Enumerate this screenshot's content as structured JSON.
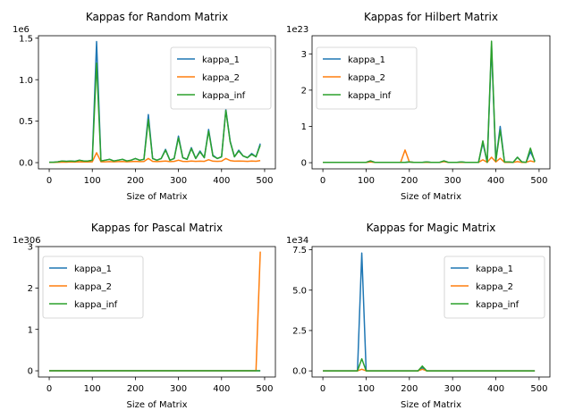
{
  "figure": {
    "background": "#ffffff"
  },
  "series_colors": {
    "kappa_1": "#1f77b4",
    "kappa_2": "#ff7f0e",
    "kappa_inf": "#2ca02c"
  },
  "chart_data": [
    {
      "type": "line",
      "title": "Kappas for Random Matrix",
      "xlabel": "Size of Matrix",
      "ylabel": "",
      "offset_text": "1e6",
      "xlim": [
        -25,
        525
      ],
      "ylim": [
        -0.075,
        1.53
      ],
      "xticks": [
        0,
        100,
        200,
        300,
        400,
        500
      ],
      "yticks": [
        0.0,
        0.5,
        1.0,
        1.5
      ],
      "ytick_labels": [
        "0.0",
        "0.5",
        "1.0",
        "1.5"
      ],
      "legend": {
        "position": "upper-right",
        "entries": [
          "kappa_1",
          "kappa_2",
          "kappa_inf"
        ]
      },
      "x": [
        0,
        10,
        20,
        30,
        40,
        50,
        60,
        70,
        80,
        90,
        100,
        110,
        120,
        130,
        140,
        150,
        160,
        170,
        180,
        190,
        200,
        210,
        220,
        230,
        240,
        250,
        260,
        270,
        280,
        290,
        300,
        310,
        320,
        330,
        340,
        350,
        360,
        370,
        380,
        390,
        400,
        410,
        420,
        430,
        440,
        450,
        460,
        470,
        480,
        490
      ],
      "series": [
        {
          "name": "kappa_1",
          "values": [
            0.005,
            0.005,
            0.01,
            0.02,
            0.015,
            0.02,
            0.015,
            0.03,
            0.02,
            0.02,
            0.03,
            1.46,
            0.02,
            0.03,
            0.04,
            0.02,
            0.03,
            0.04,
            0.02,
            0.03,
            0.05,
            0.03,
            0.04,
            0.58,
            0.05,
            0.03,
            0.05,
            0.16,
            0.03,
            0.05,
            0.32,
            0.06,
            0.04,
            0.18,
            0.05,
            0.14,
            0.06,
            0.4,
            0.09,
            0.05,
            0.07,
            0.64,
            0.26,
            0.07,
            0.15,
            0.08,
            0.06,
            0.11,
            0.07,
            0.23
          ]
        },
        {
          "name": "kappa_2",
          "values": [
            0.003,
            0.004,
            0.005,
            0.006,
            0.006,
            0.008,
            0.007,
            0.01,
            0.008,
            0.009,
            0.01,
            0.12,
            0.01,
            0.01,
            0.012,
            0.01,
            0.012,
            0.013,
            0.01,
            0.012,
            0.015,
            0.012,
            0.014,
            0.05,
            0.015,
            0.012,
            0.015,
            0.02,
            0.012,
            0.015,
            0.03,
            0.016,
            0.013,
            0.02,
            0.015,
            0.018,
            0.016,
            0.035,
            0.018,
            0.015,
            0.018,
            0.05,
            0.025,
            0.018,
            0.02,
            0.018,
            0.016,
            0.02,
            0.017,
            0.025
          ]
        },
        {
          "name": "kappa_inf",
          "values": [
            0.005,
            0.005,
            0.01,
            0.02,
            0.015,
            0.02,
            0.015,
            0.03,
            0.02,
            0.02,
            0.03,
            1.2,
            0.02,
            0.03,
            0.04,
            0.02,
            0.03,
            0.04,
            0.02,
            0.03,
            0.05,
            0.03,
            0.04,
            0.52,
            0.05,
            0.03,
            0.05,
            0.15,
            0.03,
            0.05,
            0.3,
            0.06,
            0.04,
            0.17,
            0.05,
            0.13,
            0.06,
            0.38,
            0.08,
            0.05,
            0.07,
            0.63,
            0.25,
            0.07,
            0.14,
            0.08,
            0.06,
            0.1,
            0.07,
            0.21
          ]
        }
      ]
    },
    {
      "type": "line",
      "title": "Kappas for Hilbert Matrix",
      "xlabel": "Size of Matrix",
      "ylabel": "",
      "offset_text": "1e23",
      "xlim": [
        -25,
        525
      ],
      "ylim": [
        -0.17,
        3.5
      ],
      "xticks": [
        0,
        100,
        200,
        300,
        400,
        500
      ],
      "yticks": [
        0,
        1,
        2,
        3
      ],
      "ytick_labels": [
        "0",
        "1",
        "2",
        "3"
      ],
      "legend": {
        "position": "upper-left",
        "entries": [
          "kappa_1",
          "kappa_2",
          "kappa_inf"
        ]
      },
      "x": [
        0,
        10,
        20,
        30,
        40,
        50,
        60,
        70,
        80,
        90,
        100,
        110,
        120,
        130,
        140,
        150,
        160,
        170,
        180,
        190,
        200,
        210,
        220,
        230,
        240,
        250,
        260,
        270,
        280,
        290,
        300,
        310,
        320,
        330,
        340,
        350,
        360,
        370,
        380,
        390,
        400,
        410,
        420,
        430,
        440,
        450,
        460,
        470,
        480,
        490
      ],
      "series": [
        {
          "name": "kappa_1",
          "values": [
            0.01,
            0.01,
            0.01,
            0.01,
            0.01,
            0.01,
            0.01,
            0.01,
            0.01,
            0.01,
            0.01,
            0.05,
            0.01,
            0.01,
            0.01,
            0.01,
            0.01,
            0.01,
            0.01,
            0.01,
            0.02,
            0.01,
            0.01,
            0.01,
            0.02,
            0.01,
            0.01,
            0.01,
            0.05,
            0.01,
            0.01,
            0.01,
            0.02,
            0.01,
            0.01,
            0.01,
            0.01,
            0.55,
            0.01,
            3.2,
            0.05,
            1.0,
            0.02,
            0.02,
            0.01,
            0.15,
            0.02,
            0.01,
            0.3,
            0.05
          ]
        },
        {
          "name": "kappa_2",
          "values": [
            0.01,
            0.01,
            0.01,
            0.01,
            0.01,
            0.01,
            0.01,
            0.01,
            0.01,
            0.01,
            0.01,
            0.02,
            0.01,
            0.01,
            0.01,
            0.01,
            0.01,
            0.01,
            0.01,
            0.35,
            0.02,
            0.01,
            0.01,
            0.01,
            0.01,
            0.01,
            0.01,
            0.01,
            0.03,
            0.01,
            0.01,
            0.01,
            0.01,
            0.01,
            0.01,
            0.01,
            0.01,
            0.08,
            0.01,
            0.15,
            0.02,
            0.12,
            0.01,
            0.01,
            0.01,
            0.03,
            0.01,
            0.01,
            0.05,
            0.02
          ]
        },
        {
          "name": "kappa_inf",
          "values": [
            0.01,
            0.01,
            0.01,
            0.01,
            0.01,
            0.01,
            0.01,
            0.01,
            0.01,
            0.01,
            0.01,
            0.05,
            0.01,
            0.01,
            0.01,
            0.01,
            0.01,
            0.01,
            0.01,
            0.01,
            0.02,
            0.01,
            0.01,
            0.01,
            0.02,
            0.01,
            0.01,
            0.01,
            0.05,
            0.01,
            0.01,
            0.01,
            0.02,
            0.01,
            0.01,
            0.01,
            0.01,
            0.6,
            0.01,
            3.35,
            0.05,
            0.9,
            0.02,
            0.02,
            0.01,
            0.15,
            0.02,
            0.01,
            0.4,
            0.02
          ]
        }
      ]
    },
    {
      "type": "line",
      "title": "Kappas for Pascal Matrix",
      "xlabel": "Size of Matrix",
      "ylabel": "",
      "offset_text": "1e306",
      "xlim": [
        -25,
        525
      ],
      "ylim": [
        -0.15,
        3.0
      ],
      "xticks": [
        0,
        100,
        200,
        300,
        400,
        500
      ],
      "yticks": [
        0,
        1,
        2,
        3
      ],
      "ytick_labels": [
        "0",
        "1",
        "2",
        "3"
      ],
      "legend": {
        "position": "upper-left",
        "entries": [
          "kappa_1",
          "kappa_2",
          "kappa_inf"
        ]
      },
      "x": [
        0,
        100,
        200,
        300,
        400,
        480,
        490
      ],
      "series": [
        {
          "name": "kappa_1",
          "values": [
            0,
            0,
            0,
            0,
            0,
            0,
            0
          ]
        },
        {
          "name": "kappa_2",
          "values": [
            0,
            0,
            0,
            0,
            0,
            0,
            2.88
          ]
        },
        {
          "name": "kappa_inf",
          "values": [
            0,
            0,
            0,
            0,
            0,
            0,
            0
          ]
        }
      ]
    },
    {
      "type": "line",
      "title": "Kappas for Magic Matrix",
      "xlabel": "Size of Matrix",
      "ylabel": "",
      "offset_text": "1e34",
      "xlim": [
        -25,
        525
      ],
      "ylim": [
        -0.38,
        7.7
      ],
      "xticks": [
        0,
        100,
        200,
        300,
        400,
        500
      ],
      "yticks": [
        0.0,
        2.5,
        5.0,
        7.5
      ],
      "ytick_labels": [
        "0.0",
        "2.5",
        "5.0",
        "7.5"
      ],
      "legend": {
        "position": "upper-right",
        "entries": [
          "kappa_1",
          "kappa_2",
          "kappa_inf"
        ]
      },
      "x": [
        0,
        10,
        20,
        30,
        40,
        50,
        60,
        70,
        80,
        90,
        100,
        110,
        120,
        130,
        140,
        150,
        160,
        170,
        180,
        190,
        200,
        210,
        220,
        230,
        240,
        250,
        260,
        270,
        280,
        290,
        300,
        310,
        320,
        330,
        340,
        350,
        360,
        370,
        380,
        390,
        400,
        410,
        420,
        430,
        440,
        450,
        460,
        470,
        480,
        490
      ],
      "series": [
        {
          "name": "kappa_1",
          "values": [
            0,
            0,
            0,
            0,
            0,
            0,
            0,
            0,
            0,
            7.3,
            0,
            0,
            0,
            0,
            0,
            0,
            0,
            0,
            0,
            0,
            0,
            0,
            0,
            0.2,
            0,
            0,
            0,
            0,
            0,
            0,
            0,
            0,
            0,
            0,
            0,
            0,
            0,
            0,
            0,
            0,
            0,
            0,
            0,
            0,
            0,
            0,
            0,
            0,
            0,
            0
          ]
        },
        {
          "name": "kappa_2",
          "values": [
            0,
            0,
            0,
            0,
            0,
            0,
            0,
            0,
            0,
            0.1,
            0,
            0,
            0,
            0,
            0,
            0,
            0,
            0,
            0,
            0,
            0,
            0,
            0,
            0.1,
            0,
            0,
            0,
            0,
            0,
            0,
            0,
            0,
            0,
            0,
            0,
            0,
            0,
            0,
            0,
            0,
            0,
            0,
            0,
            0,
            0,
            0,
            0,
            0,
            0,
            0
          ]
        },
        {
          "name": "kappa_inf",
          "values": [
            0,
            0,
            0,
            0,
            0,
            0,
            0,
            0,
            0,
            0.75,
            0,
            0,
            0,
            0,
            0,
            0,
            0,
            0,
            0,
            0,
            0,
            0,
            0,
            0.3,
            0,
            0,
            0,
            0,
            0,
            0,
            0,
            0,
            0,
            0,
            0,
            0,
            0,
            0,
            0,
            0,
            0,
            0,
            0,
            0,
            0,
            0,
            0,
            0,
            0,
            0
          ]
        }
      ]
    }
  ]
}
